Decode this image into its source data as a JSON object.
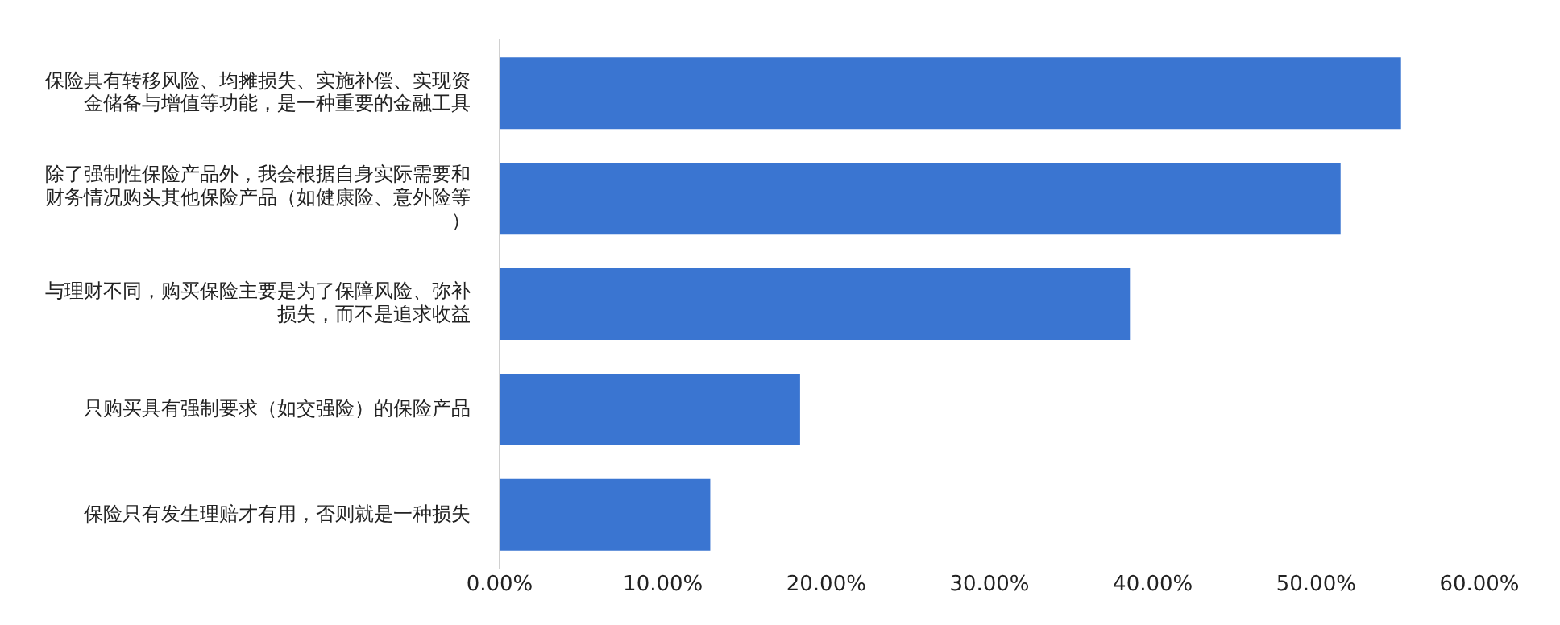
{
  "chart_data": {
    "type": "bar",
    "orientation": "horizontal",
    "categories": [
      "保险具有转移风险、均摊损失、实施补偿、实现资金储备与增值等功能，是一种重要的金融工具",
      "除了强制性保险产品外，我会根据自身实际需要和财务情况购头其他保险产品（如健康险、意外险等）",
      "与理财不同，购买保险主要是为了保障风险、弥补损失，而不是追求收益",
      "只购买具有强制要求（如交强险）的保险产品",
      "保险只有发生理赔才有用，否则就是一种损失"
    ],
    "values": [
      55.2,
      51.5,
      38.6,
      18.4,
      12.9
    ],
    "color": "#3a75d1",
    "xlim": [
      0,
      60
    ],
    "xticks": [
      {
        "value": 0,
        "label": "0.00%"
      },
      {
        "value": 10,
        "label": "10.00%"
      },
      {
        "value": 20,
        "label": "20.00%"
      },
      {
        "value": 30,
        "label": "30.00%"
      },
      {
        "value": 40,
        "label": "40.00%"
      },
      {
        "value": 50,
        "label": "50.00%"
      },
      {
        "value": 60,
        "label": "60.00%"
      }
    ],
    "grid": false
  }
}
